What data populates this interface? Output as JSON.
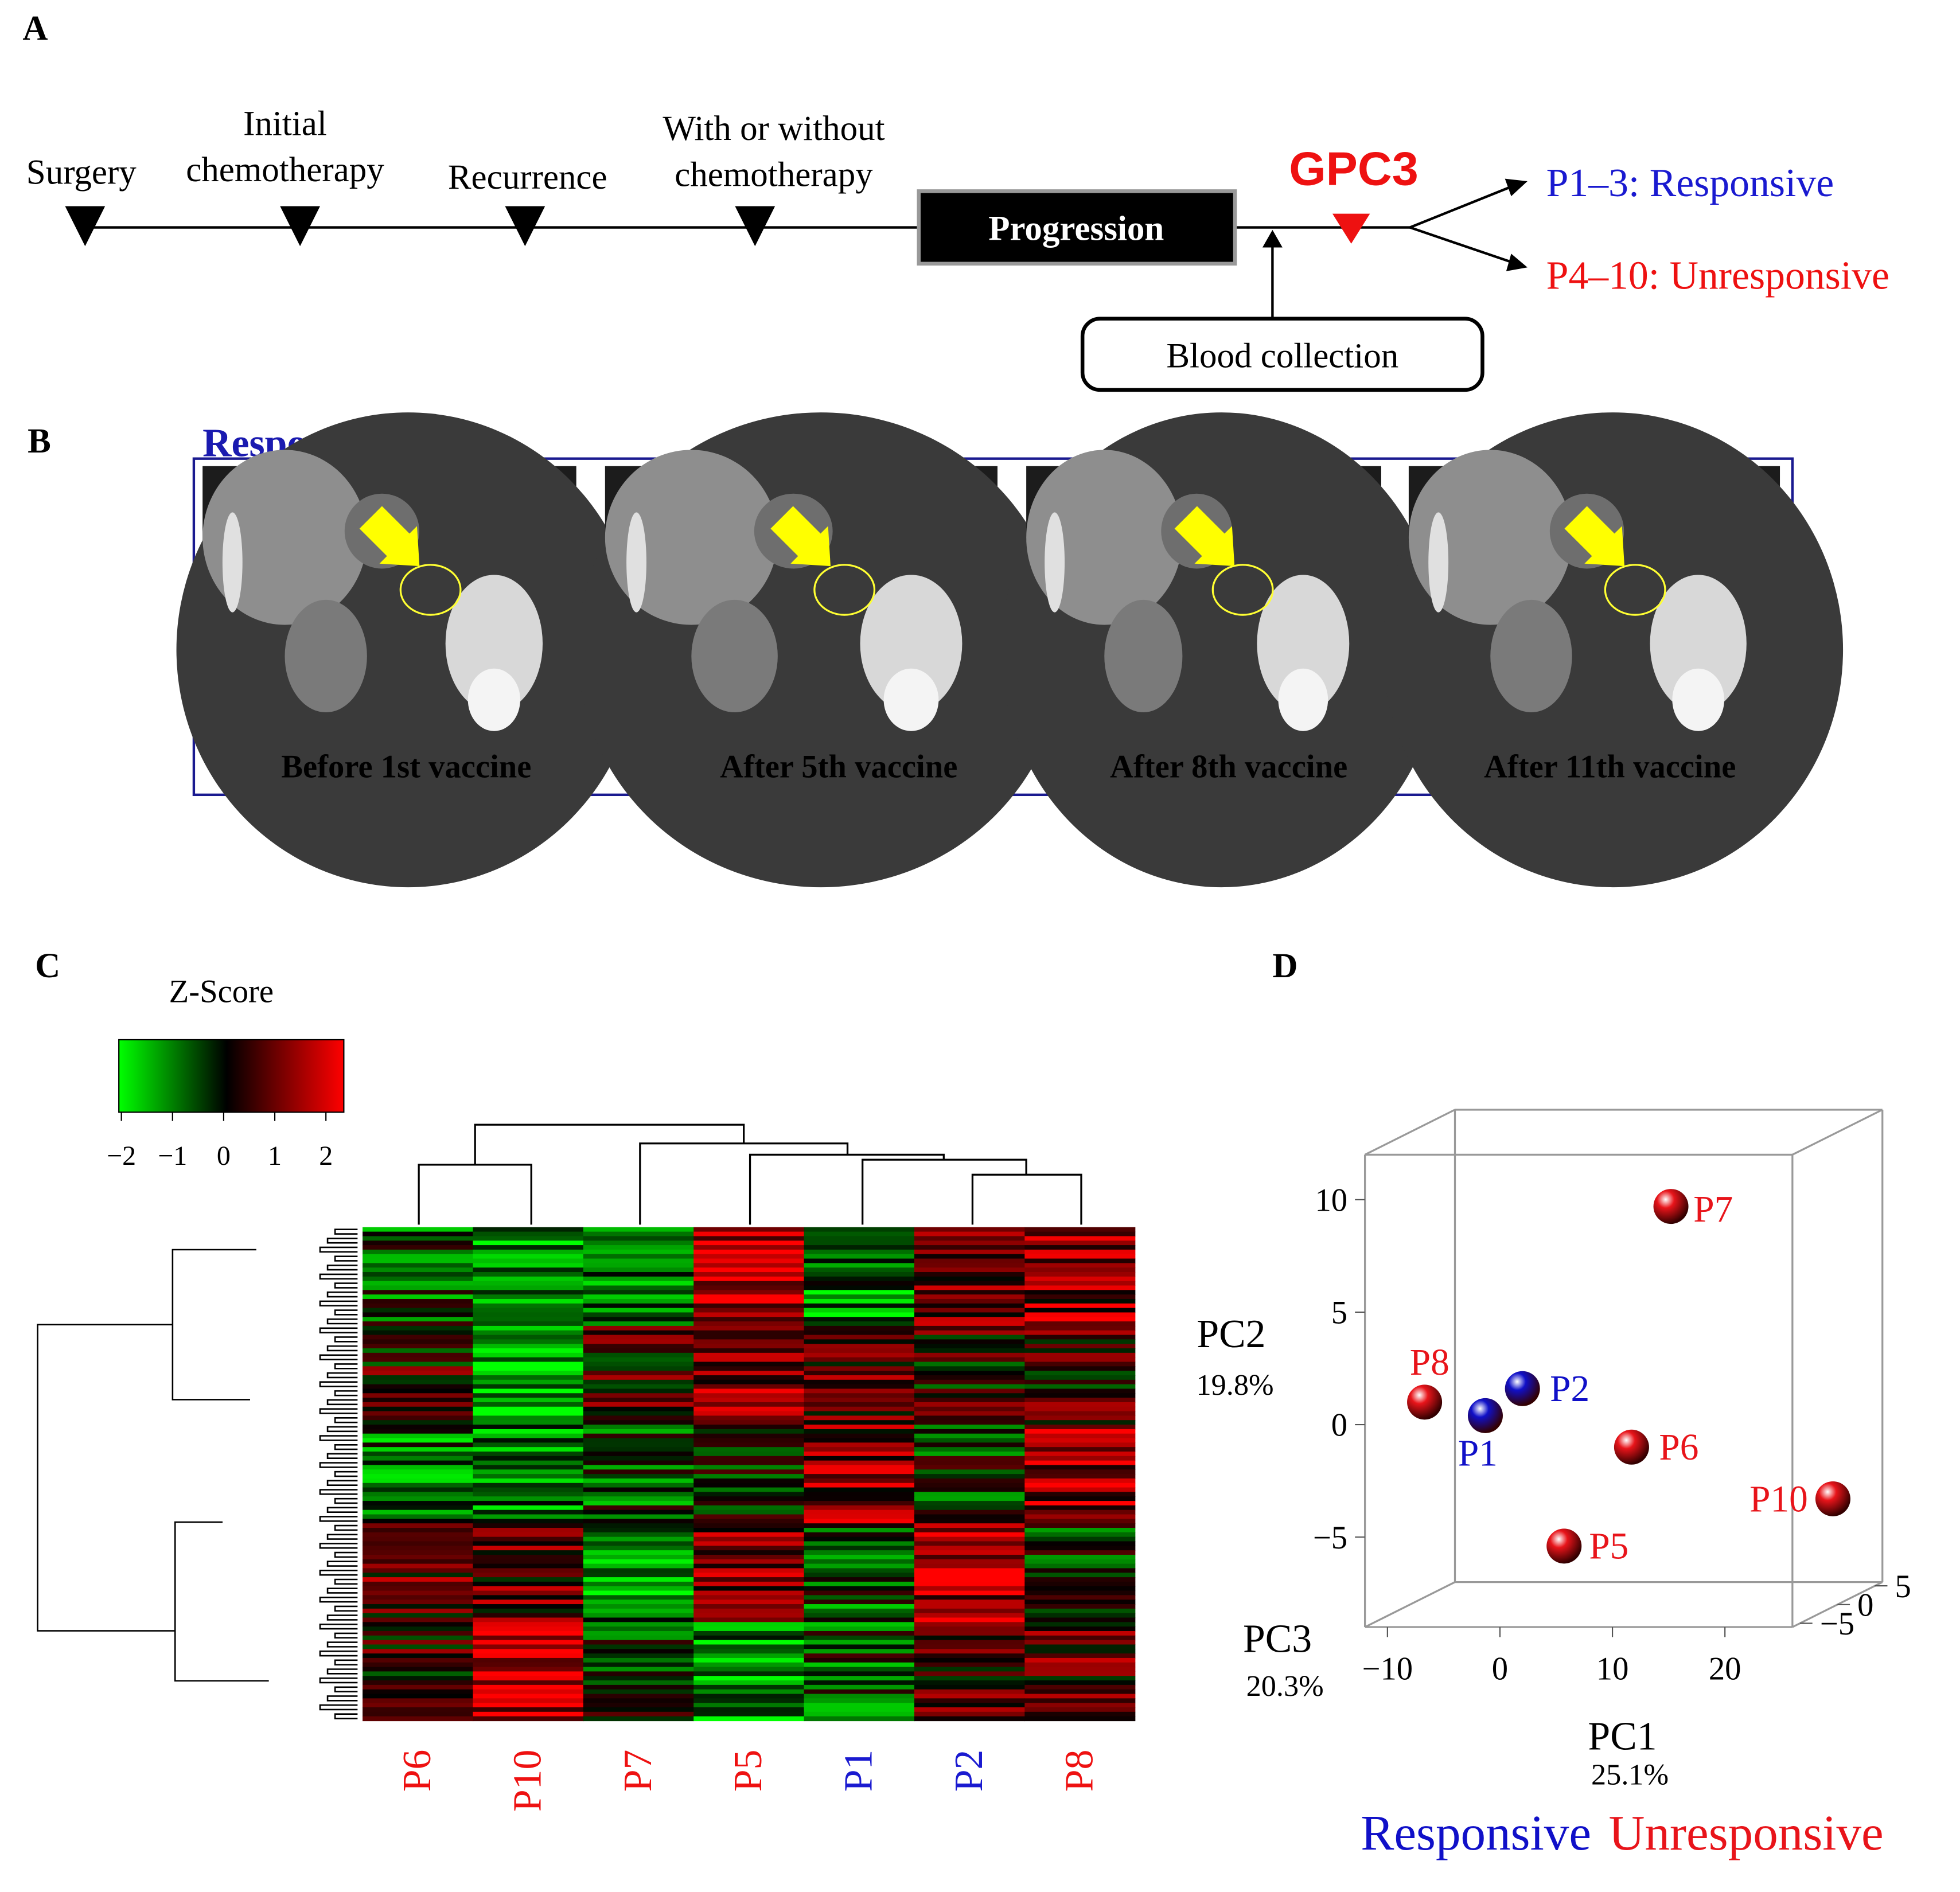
{
  "panel_a": {
    "letter": "A",
    "events": [
      {
        "lines": [
          "Surgery"
        ]
      },
      {
        "lines": [
          "Initial",
          "chemotherapy"
        ]
      },
      {
        "lines": [
          "Recurrence"
        ]
      },
      {
        "lines": [
          "With or without",
          "chemotherapy"
        ]
      }
    ],
    "progression": "Progression",
    "marker": "GPC3",
    "blood": "Blood collection",
    "outcomes": [
      {
        "text": "P1–3: Responsive",
        "color": "#1a1ad0"
      },
      {
        "text": "P4–10: Unresponsive",
        "color": "#ee1111"
      }
    ]
  },
  "panel_b": {
    "letter": "B",
    "title": "Responsive case",
    "captions": [
      "Before 1st vaccine",
      "After 5th vaccine",
      "After 8th vaccine",
      "After 11th vaccine"
    ]
  },
  "panel_c": {
    "letter": "C",
    "colorbar": {
      "title": "Z-Score",
      "lim": [
        -2.05,
        2.35
      ],
      "ticks": [
        {
          "value": -2,
          "label": "−2"
        },
        {
          "value": -1,
          "label": "−1"
        },
        0,
        1,
        2
      ]
    },
    "columns": [
      {
        "label": "P6",
        "color": "#ee1111"
      },
      {
        "label": "P10",
        "color": "#ee1111"
      },
      {
        "label": "P7",
        "color": "#ee1111"
      },
      {
        "label": "P5",
        "color": "#ee1111"
      },
      {
        "label": "P1",
        "color": "#1a1ad0"
      },
      {
        "label": "P2",
        "color": "#1a1ad0"
      },
      {
        "label": "P8",
        "color": "#ee1111"
      }
    ]
  },
  "chart_data": {
    "type": "scatter",
    "panel_label": "D",
    "x_label": "PC1",
    "x_label_sub": "25.1%",
    "y_label": "PC2",
    "y_label_sub": "19.8%",
    "z_label": "PC3",
    "z_label_sub": "20.3%",
    "xlim": [
      -12,
      26
    ],
    "ylim": [
      -9,
      12
    ],
    "zlim": [
      -6,
      6
    ],
    "xticks": [
      {
        "value": -10,
        "label": "−10"
      },
      0,
      10,
      20
    ],
    "yticks": [
      {
        "value": -5,
        "label": "−5"
      },
      0,
      5,
      10
    ],
    "zticks": [
      {
        "value": -5,
        "label": "−5"
      },
      0,
      5
    ],
    "series": [
      {
        "name": "Responsive",
        "color": "#1010c8",
        "labels": [
          "P1",
          "P2"
        ],
        "x": [
          -5.3,
          -2.0
        ],
        "y": [
          -0.6,
          0.6
        ],
        "z": [
          0,
          0
        ]
      },
      {
        "name": "Unresponsive",
        "color": "#e8141a",
        "labels": [
          "P5",
          "P6",
          "P7",
          "P8",
          "P10"
        ],
        "x": [
          1.7,
          7.7,
          11.2,
          -10.7,
          25.6
        ],
        "y": [
          -6.4,
          -2.0,
          8.7,
          0,
          -4.3
        ],
        "z": [
          0,
          0,
          0,
          0,
          0
        ]
      }
    ]
  }
}
